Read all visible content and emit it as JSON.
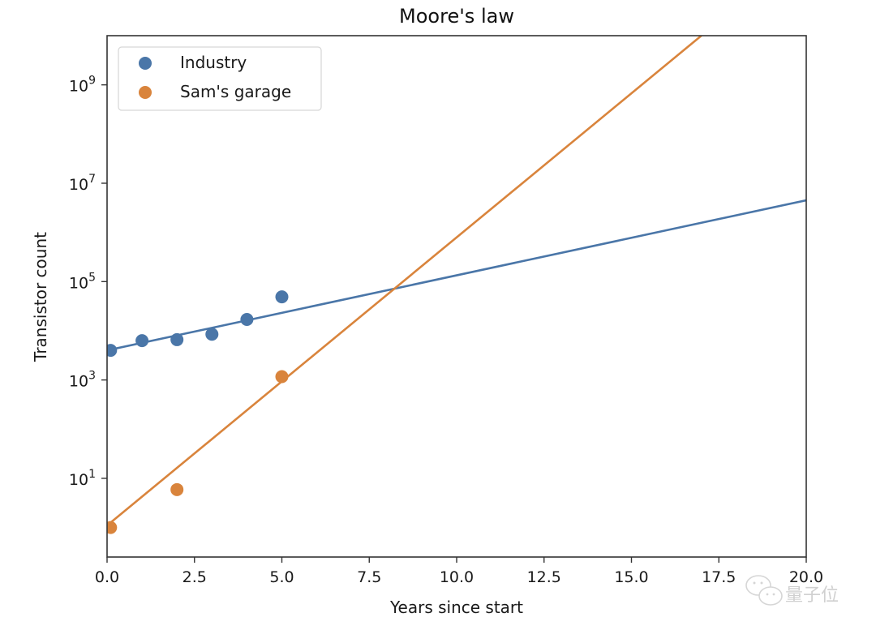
{
  "chart_data": {
    "type": "scatter",
    "title": "Moore's law",
    "xlabel": "Years since start",
    "ylabel": "Transistor count",
    "xlim": [
      0,
      20
    ],
    "ylim_log10": [
      -0.6,
      10
    ],
    "yscale": "log",
    "grid": false,
    "legend_position": "top-left",
    "x_ticks": [
      0,
      2.5,
      5,
      7.5,
      10,
      12.5,
      15,
      17.5,
      20
    ],
    "x_tick_labels": [
      "0.0",
      "2.5",
      "5.0",
      "7.5",
      "10.0",
      "12.5",
      "15.0",
      "17.5",
      "20.0"
    ],
    "y_ticks_log10": [
      1,
      3,
      5,
      7,
      9
    ],
    "y_tick_labels": [
      {
        "base": "10",
        "exp": "1"
      },
      {
        "base": "10",
        "exp": "3"
      },
      {
        "base": "10",
        "exp": "5"
      },
      {
        "base": "10",
        "exp": "7"
      },
      {
        "base": "10",
        "exp": "9"
      }
    ],
    "series": [
      {
        "name": "Industry",
        "color": "#4a76a8",
        "x": [
          0.1,
          1,
          2,
          3,
          4,
          5
        ],
        "y": [
          4000,
          6300,
          6600,
          8500,
          17000,
          49000
        ],
        "fit_line": {
          "x": [
            0,
            20
          ],
          "y": [
            4000,
            4500000
          ]
        }
      },
      {
        "name": "Sam's garage",
        "color": "#d9843c",
        "x": [
          0.1,
          2,
          5
        ],
        "y": [
          1,
          5.9,
          1170
        ],
        "fit_line": {
          "x": [
            0,
            17
          ],
          "y": [
            1.1,
            10000000000
          ]
        }
      }
    ]
  },
  "watermark": {
    "text": "量子位",
    "icon": "wechat-icon"
  }
}
